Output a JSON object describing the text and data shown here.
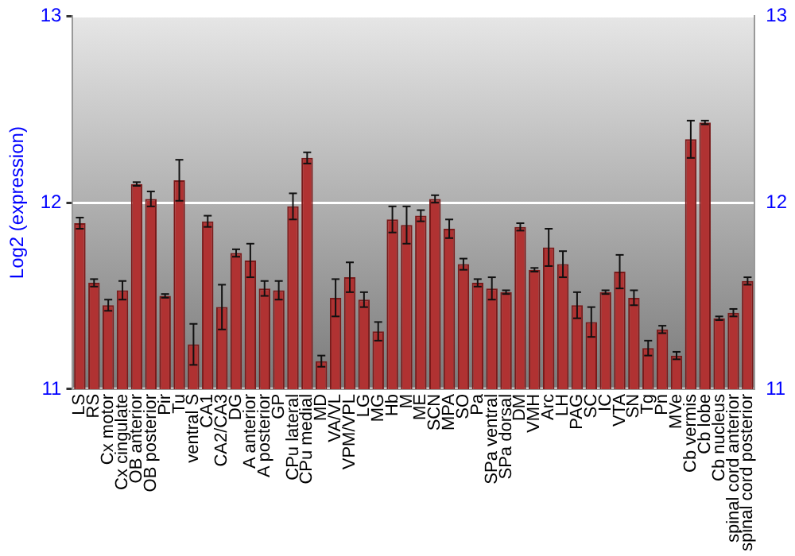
{
  "chart_data": {
    "type": "bar",
    "ylabel": "Log2 (expression)",
    "categories": [
      "LS",
      "RS",
      "Cx motor",
      "Cx cingulate",
      "OB anterior",
      "OB posterior",
      "Pir",
      "Tu",
      "ventral S",
      "CA1",
      "CA2/CA3",
      "DG",
      "A anterior",
      "A posterior",
      "GP",
      "CPu lateral",
      "CPu medial",
      "MD",
      "VA/VL",
      "VPM/VPL",
      "LG",
      "MG",
      "Hb",
      "M",
      "ME",
      "SCN",
      "MPA",
      "SO",
      "Pa",
      "SPa ventral",
      "SPa dorsal",
      "DM",
      "VMH",
      "Arc",
      "LH",
      "PAG",
      "SC",
      "IC",
      "VTA",
      "SN",
      "Tg",
      "Pn",
      "MVe",
      "Cb vermis",
      "Cb lobe",
      "Cb nucleus",
      "spinal cord anterior",
      "spinal cord posterior"
    ],
    "values": [
      11.89,
      11.57,
      11.45,
      11.53,
      12.1,
      12.02,
      11.5,
      12.12,
      11.24,
      11.9,
      11.44,
      11.73,
      11.69,
      11.54,
      11.53,
      11.98,
      12.24,
      11.15,
      11.49,
      11.6,
      11.48,
      11.31,
      11.91,
      11.88,
      11.93,
      12.02,
      11.86,
      11.67,
      11.57,
      11.54,
      11.52,
      11.87,
      11.64,
      11.76,
      11.67,
      11.45,
      11.36,
      11.52,
      11.63,
      11.49,
      11.22,
      11.32,
      11.18,
      12.34,
      12.43,
      11.38,
      11.41,
      11.58
    ],
    "errors": [
      0.03,
      0.02,
      0.03,
      0.05,
      0.01,
      0.04,
      0.01,
      0.11,
      0.11,
      0.03,
      0.12,
      0.02,
      0.09,
      0.04,
      0.05,
      0.07,
      0.03,
      0.03,
      0.1,
      0.08,
      0.04,
      0.05,
      0.07,
      0.1,
      0.03,
      0.02,
      0.05,
      0.03,
      0.02,
      0.06,
      0.01,
      0.02,
      0.01,
      0.1,
      0.07,
      0.07,
      0.08,
      0.01,
      0.09,
      0.04,
      0.04,
      0.02,
      0.02,
      0.1,
      0.01,
      0.01,
      0.02,
      0.02
    ],
    "color": "#b03232",
    "ylim": [
      11,
      13
    ],
    "yticks": [
      11,
      12,
      13
    ],
    "y2lim": [
      11,
      13
    ],
    "y2ticks": [
      11,
      12,
      13
    ],
    "grid": "y",
    "legend": false
  }
}
